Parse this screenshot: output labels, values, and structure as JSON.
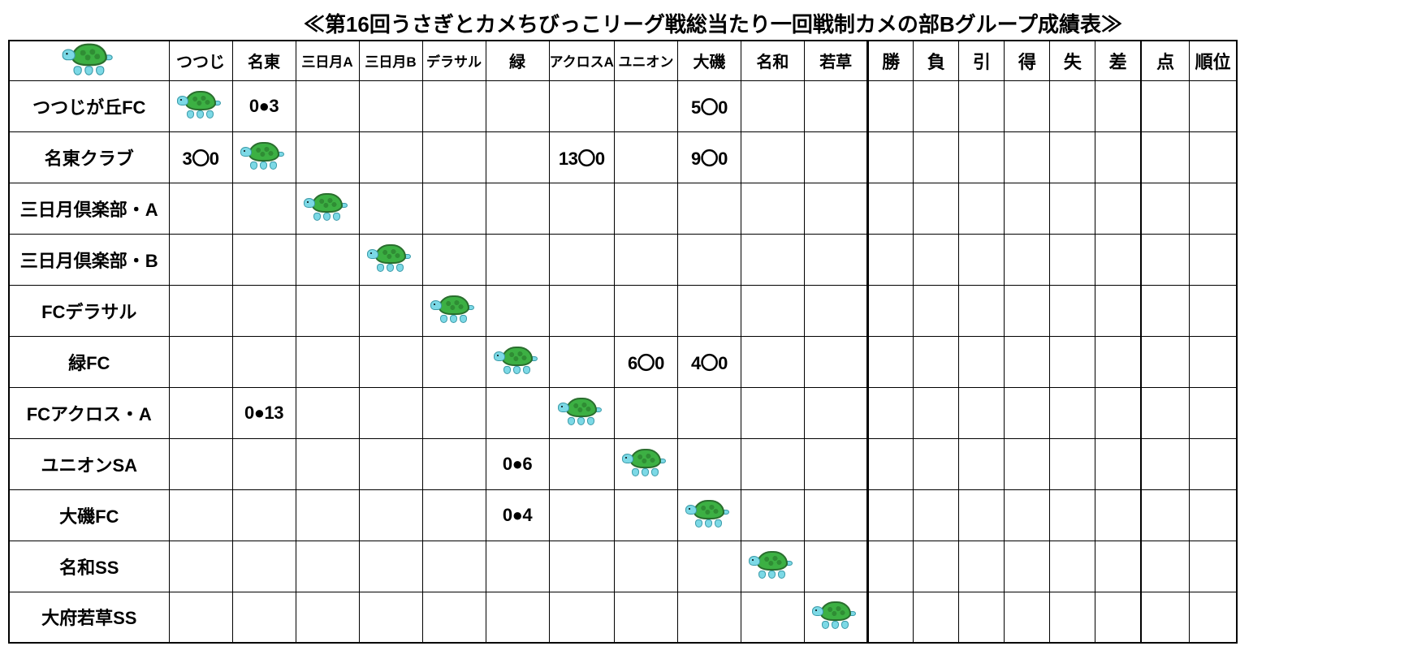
{
  "title": "≪第16回うさぎとカメちびっこリーグ戦総当たり一回戦制カメの部Bグループ成績表≫",
  "opponent_headers": [
    {
      "label": "つつじ",
      "small": false
    },
    {
      "label": "名東",
      "small": false
    },
    {
      "label": "三日月A",
      "small": true
    },
    {
      "label": "三日月B",
      "small": true
    },
    {
      "label": "デラサル",
      "small": true
    },
    {
      "label": "緑",
      "small": false
    },
    {
      "label": "アクロスA",
      "small": true
    },
    {
      "label": "ユニオン",
      "small": true
    },
    {
      "label": "大磯",
      "small": false
    },
    {
      "label": "名和",
      "small": false
    },
    {
      "label": "若草",
      "small": false
    }
  ],
  "stat_headers": [
    "勝",
    "負",
    "引",
    "得",
    "失",
    "差"
  ],
  "rank_headers": [
    "点",
    "順位"
  ],
  "rows": [
    {
      "team": "つつじが丘FC",
      "cells": [
        "SELF",
        "0●3",
        "",
        "",
        "",
        "",
        "",
        "",
        "5〇0",
        "",
        ""
      ],
      "stats": [
        "",
        "",
        "",
        "",
        "",
        ""
      ],
      "rank": [
        "",
        ""
      ]
    },
    {
      "team": "名東クラブ",
      "cells": [
        "3〇0",
        "SELF",
        "",
        "",
        "",
        "",
        "13〇0",
        "",
        "9〇0",
        "",
        ""
      ],
      "stats": [
        "",
        "",
        "",
        "",
        "",
        ""
      ],
      "rank": [
        "",
        ""
      ]
    },
    {
      "team": "三日月倶楽部・A",
      "cells": [
        "",
        "",
        "SELF",
        "",
        "",
        "",
        "",
        "",
        "",
        "",
        ""
      ],
      "stats": [
        "",
        "",
        "",
        "",
        "",
        ""
      ],
      "rank": [
        "",
        ""
      ]
    },
    {
      "team": "三日月倶楽部・B",
      "cells": [
        "",
        "",
        "",
        "SELF",
        "",
        "",
        "",
        "",
        "",
        "",
        ""
      ],
      "stats": [
        "",
        "",
        "",
        "",
        "",
        ""
      ],
      "rank": [
        "",
        ""
      ]
    },
    {
      "team": "FCデラサル",
      "cells": [
        "",
        "",
        "",
        "",
        "SELF",
        "",
        "",
        "",
        "",
        "",
        ""
      ],
      "stats": [
        "",
        "",
        "",
        "",
        "",
        ""
      ],
      "rank": [
        "",
        ""
      ]
    },
    {
      "team": "緑FC",
      "cells": [
        "",
        "",
        "",
        "",
        "",
        "SELF",
        "",
        "6〇0",
        "4〇0",
        "",
        ""
      ],
      "stats": [
        "",
        "",
        "",
        "",
        "",
        ""
      ],
      "rank": [
        "",
        ""
      ]
    },
    {
      "team": "FCアクロス・A",
      "cells": [
        "",
        "0●13",
        "",
        "",
        "",
        "",
        "SELF",
        "",
        "",
        "",
        ""
      ],
      "stats": [
        "",
        "",
        "",
        "",
        "",
        ""
      ],
      "rank": [
        "",
        ""
      ]
    },
    {
      "team": "ユニオンSA",
      "cells": [
        "",
        "",
        "",
        "",
        "",
        "0●6",
        "",
        "SELF",
        "",
        "",
        ""
      ],
      "stats": [
        "",
        "",
        "",
        "",
        "",
        ""
      ],
      "rank": [
        "",
        ""
      ]
    },
    {
      "team": "大磯FC",
      "cells": [
        "",
        "",
        "",
        "",
        "",
        "0●4",
        "",
        "",
        "SELF",
        "",
        ""
      ],
      "stats": [
        "",
        "",
        "",
        "",
        "",
        ""
      ],
      "rank": [
        "",
        ""
      ]
    },
    {
      "team": "名和SS",
      "cells": [
        "",
        "",
        "",
        "",
        "",
        "",
        "",
        "",
        "",
        "SELF",
        ""
      ],
      "stats": [
        "",
        "",
        "",
        "",
        "",
        ""
      ],
      "rank": [
        "",
        ""
      ]
    },
    {
      "team": "大府若草SS",
      "cells": [
        "",
        "",
        "",
        "",
        "",
        "",
        "",
        "",
        "",
        "",
        "SELF"
      ],
      "stats": [
        "",
        "",
        "",
        "",
        "",
        ""
      ],
      "rank": [
        "",
        ""
      ]
    }
  ],
  "colors": {
    "border": "#000000",
    "background": "#ffffff",
    "shell": "#3cb043",
    "shell_border": "#2a6e2e",
    "skin": "#7cd9e6",
    "skin_border": "#3a9aa8"
  }
}
